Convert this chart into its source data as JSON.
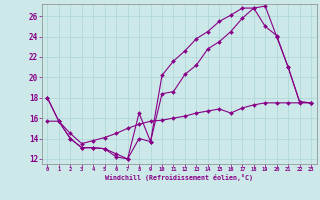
{
  "xlabel": "Windchill (Refroidissement éolien,°C)",
  "background_color": "#cce8e8",
  "line_color": "#880088",
  "grid_color": "#aad4d4",
  "xlim": [
    -0.5,
    23.5
  ],
  "ylim": [
    11.5,
    27.2
  ],
  "yticks": [
    12,
    14,
    16,
    18,
    20,
    22,
    24,
    26
  ],
  "xticks": [
    0,
    1,
    2,
    3,
    4,
    5,
    6,
    7,
    8,
    9,
    10,
    11,
    12,
    13,
    14,
    15,
    16,
    17,
    18,
    19,
    20,
    21,
    22,
    23
  ],
  "series1_x": [
    0,
    1,
    2,
    3,
    4,
    5,
    6,
    7,
    8,
    9,
    10,
    11,
    12,
    13,
    14,
    15,
    16,
    17,
    18,
    19,
    20,
    21,
    22,
    23
  ],
  "series1_y": [
    18.0,
    15.7,
    14.0,
    13.1,
    13.1,
    13.0,
    12.2,
    12.0,
    16.5,
    13.7,
    20.2,
    21.6,
    22.6,
    23.8,
    24.5,
    25.5,
    26.1,
    26.8,
    26.8,
    25.0,
    24.1,
    21.0,
    17.6,
    17.5
  ],
  "series2_x": [
    0,
    1,
    2,
    3,
    4,
    5,
    6,
    7,
    8,
    9,
    10,
    11,
    12,
    13,
    14,
    15,
    16,
    17,
    18,
    19,
    20,
    21,
    22,
    23
  ],
  "series2_y": [
    18.0,
    15.7,
    14.0,
    13.1,
    13.1,
    13.0,
    12.5,
    12.0,
    14.0,
    13.7,
    18.4,
    18.6,
    20.3,
    21.2,
    22.8,
    23.5,
    24.5,
    25.8,
    26.8,
    27.0,
    24.0,
    21.0,
    17.6,
    17.5
  ],
  "series3_x": [
    0,
    1,
    2,
    3,
    4,
    5,
    6,
    7,
    8,
    9,
    10,
    11,
    12,
    13,
    14,
    15,
    16,
    17,
    18,
    19,
    20,
    21,
    22,
    23
  ],
  "series3_y": [
    15.7,
    15.7,
    14.5,
    13.5,
    13.8,
    14.1,
    14.5,
    15.0,
    15.4,
    15.7,
    15.8,
    16.0,
    16.2,
    16.5,
    16.7,
    16.9,
    16.5,
    17.0,
    17.3,
    17.5,
    17.5,
    17.5,
    17.5,
    17.5
  ]
}
